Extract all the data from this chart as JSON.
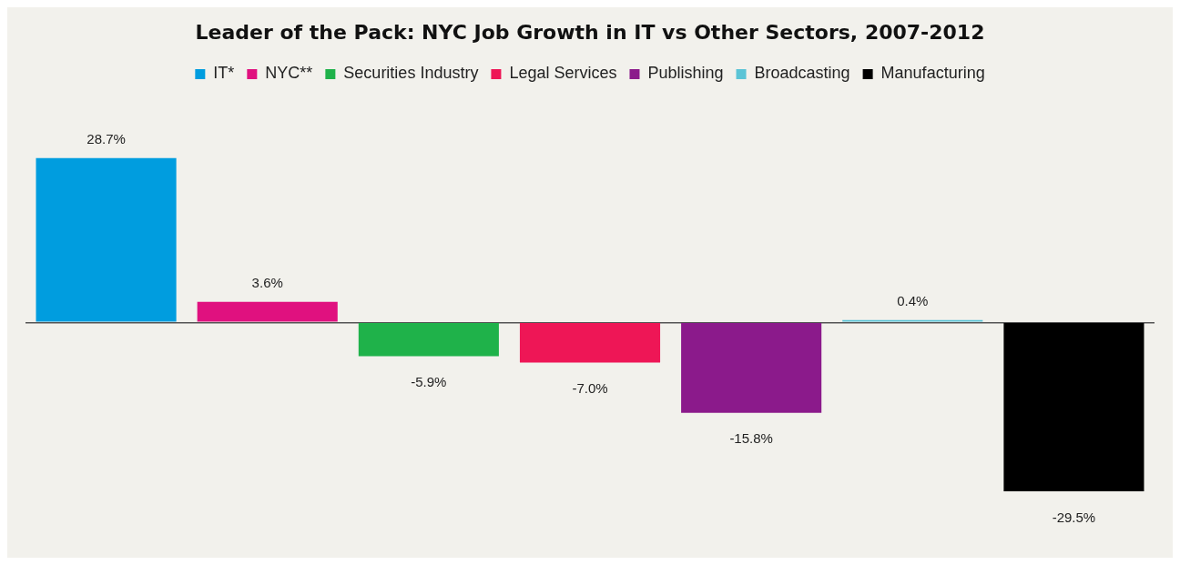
{
  "chart_data": {
    "type": "bar",
    "title": "Leader of the Pack: NYC Job Growth in IT vs Other Sectors, 2007-2012",
    "categories": [
      null
    ],
    "series": [
      {
        "name": "IT*",
        "color": "#009ddf",
        "values": [
          28.7
        ],
        "value_labels": [
          "28.7%"
        ]
      },
      {
        "name": "NYC**",
        "color": "#e0117f",
        "values": [
          3.6
        ],
        "value_labels": [
          "3.6%"
        ]
      },
      {
        "name": "Securities Industry",
        "color": "#1fb24a",
        "values": [
          -5.9
        ],
        "value_labels": [
          "-5.9%"
        ]
      },
      {
        "name": "Legal Services",
        "color": "#ee1656",
        "values": [
          -7.0
        ],
        "value_labels": [
          "-7.0%"
        ]
      },
      {
        "name": "Publishing",
        "color": "#8b1a8b",
        "values": [
          -15.8
        ],
        "value_labels": [
          "-15.8%"
        ]
      },
      {
        "name": "Broadcasting",
        "color": "#5bc4d6",
        "values": [
          0.4
        ],
        "value_labels": [
          "0.4%"
        ]
      },
      {
        "name": "Manufacturing",
        "color": "#000000",
        "values": [
          -29.5
        ],
        "value_labels": [
          "-29.5%"
        ]
      }
    ],
    "legend": "top"
  }
}
